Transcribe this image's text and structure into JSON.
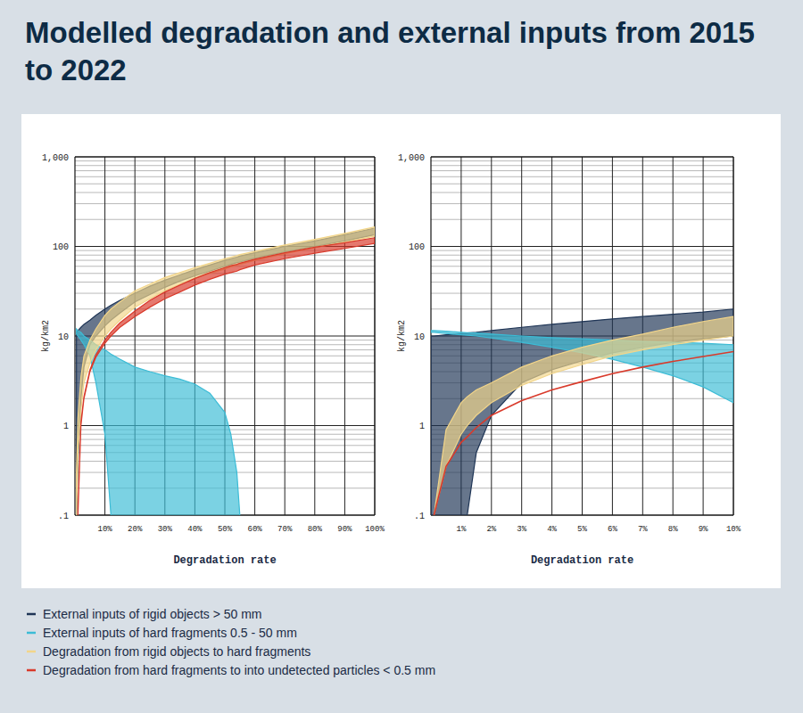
{
  "title": "Modelled degradation and external inputs from 2015 to 2022",
  "chart_data": [
    {
      "type": "area",
      "log": "y",
      "grid": true,
      "legend": "bottom",
      "xlabel": "Degradation rate",
      "ylabel": "kg/km2",
      "x": [
        0.5,
        1,
        2,
        3,
        5,
        7,
        10,
        12,
        15,
        20,
        25,
        30,
        35,
        40,
        45,
        50,
        52,
        54,
        55,
        60,
        70,
        80,
        90,
        100
      ],
      "xlim": [
        0,
        100
      ],
      "xticks": [
        {
          "value": 10,
          "label": "10%"
        },
        {
          "value": 20,
          "label": "20%"
        },
        {
          "value": 30,
          "label": "30%"
        },
        {
          "value": 40,
          "label": "40%"
        },
        {
          "value": 50,
          "label": "50%"
        },
        {
          "value": 60,
          "label": "60%"
        },
        {
          "value": 70,
          "label": "70%"
        },
        {
          "value": 80,
          "label": "80%"
        },
        {
          "value": 90,
          "label": "90%"
        },
        {
          "value": 100,
          "label": "100%"
        }
      ],
      "ylim": [
        0.1,
        1000
      ],
      "yticks": [
        {
          "value": 0.1,
          "label": ".1"
        },
        1,
        10,
        100,
        {
          "value": 1000,
          "label": "1,000"
        }
      ],
      "series": [
        {
          "name": "External inputs of rigid objects > 50 mm",
          "color": "#1f3556",
          "high": [
            11,
            11.5,
            12.5,
            13.5,
            15,
            17,
            20,
            22,
            25,
            30,
            36,
            42,
            48,
            55,
            62,
            70,
            73,
            76,
            78,
            85,
            100,
            115,
            135,
            160
          ],
          "low": [
            0.1,
            0.4,
            2,
            4.5,
            8,
            10,
            13,
            15,
            18,
            24,
            29,
            35,
            41,
            47,
            53,
            60,
            63,
            66,
            67,
            74,
            87,
            100,
            115,
            135
          ]
        },
        {
          "name": "External inputs of hard fragments 0.5 - 50 mm",
          "color": "#3cbcd6",
          "high": [
            12,
            11.5,
            11,
            10,
            9,
            8,
            7,
            6.3,
            5.5,
            4.5,
            4,
            3.6,
            3.3,
            2.9,
            2.3,
            1.4,
            0.8,
            0.3,
            0.1,
            null,
            null,
            null,
            null,
            null
          ],
          "low": [
            10.5,
            10,
            9,
            8,
            6,
            3,
            0.8,
            0.1,
            0.01,
            0.01,
            0.01,
            0.01,
            0.01,
            0.01,
            0.01,
            0.01,
            0.01,
            0.01,
            0.01,
            null,
            null,
            null,
            null,
            null
          ]
        },
        {
          "name": "Degradation from rigid objects to hard fragments",
          "color": "#f2d58a",
          "high": [
            0.3,
            1.2,
            3.5,
            6,
            9,
            12,
            17,
            20,
            24,
            32,
            38,
            45,
            51,
            58,
            65,
            73,
            76,
            79,
            81,
            88,
            104,
            120,
            140,
            165
          ],
          "low": [
            0.1,
            0.5,
            1.5,
            3,
            5,
            7,
            10,
            12,
            15,
            21,
            26,
            32,
            38,
            44,
            50,
            56,
            59,
            62,
            63,
            70,
            83,
            97,
            112,
            130
          ]
        },
        {
          "name": "Degradation from hard fragments to into undetected particles < 0.5 mm",
          "color": "#d93a2b",
          "high": [
            null,
            0.12,
            1.1,
            2.1,
            4.2,
            6.2,
            9,
            11,
            14,
            19,
            25,
            31,
            37,
            44,
            51,
            58,
            61,
            63,
            65,
            72,
            85,
            98,
            110,
            125
          ],
          "low": [
            null,
            0.1,
            1,
            2,
            4,
            5.8,
            8.3,
            10,
            12.5,
            16.5,
            21,
            26,
            31,
            37,
            43,
            49,
            51,
            53,
            55,
            62,
            73,
            84,
            95,
            108
          ]
        }
      ]
    },
    {
      "type": "area",
      "log": "y",
      "grid": true,
      "xlabel": "Degradation rate",
      "ylabel": "kg/km2",
      "x": [
        0,
        0.1,
        0.5,
        1,
        1.2,
        1.5,
        2,
        3,
        4,
        5,
        6,
        7,
        8,
        9,
        10
      ],
      "xlim": [
        0,
        10
      ],
      "xticks": [
        {
          "value": 1,
          "label": "1%"
        },
        {
          "value": 2,
          "label": "2%"
        },
        {
          "value": 3,
          "label": "3%"
        },
        {
          "value": 4,
          "label": "4%"
        },
        {
          "value": 5,
          "label": "5%"
        },
        {
          "value": 6,
          "label": "6%"
        },
        {
          "value": 7,
          "label": "7%"
        },
        {
          "value": 8,
          "label": "8%"
        },
        {
          "value": 9,
          "label": "9%"
        },
        {
          "value": 10,
          "label": "10%"
        }
      ],
      "ylim": [
        0.1,
        1000
      ],
      "yticks": [
        {
          "value": 0.1,
          "label": ".1"
        },
        1,
        10,
        100,
        {
          "value": 1000,
          "label": "1,000"
        }
      ],
      "series": [
        {
          "color": "#1f3556",
          "high": [
            10,
            10,
            10.3,
            10.6,
            10.8,
            11,
            11.5,
            12.5,
            13.5,
            14.5,
            15.5,
            16.5,
            17.5,
            18.5,
            20
          ],
          "low": [
            0.01,
            0.01,
            0.01,
            0.01,
            0.1,
            0.5,
            1.3,
            3,
            4.2,
            5.3,
            6.5,
            7.5,
            8.5,
            9.3,
            10
          ]
        },
        {
          "color": "#3cbcd6",
          "high": [
            11.5,
            11.5,
            11.3,
            11,
            10.9,
            10.8,
            10.5,
            10,
            9.6,
            9.3,
            9,
            8.7,
            8.5,
            8.3,
            8
          ],
          "low": [
            11,
            11,
            10.7,
            10.3,
            10.2,
            10,
            9.5,
            8.5,
            7.5,
            6.5,
            5.5,
            4.5,
            3.6,
            2.7,
            1.8
          ]
        },
        {
          "color": "#f2d58a",
          "high": [
            null,
            0.1,
            0.9,
            1.8,
            2.1,
            2.5,
            3,
            4.5,
            6,
            7.5,
            9,
            10.5,
            12.5,
            14.5,
            16.5
          ],
          "low": [
            null,
            0.1,
            0.35,
            0.8,
            1,
            1.3,
            1.8,
            2.8,
            3.8,
            4.8,
            6,
            7,
            8,
            9,
            10
          ]
        },
        {
          "color": "#d93a2b",
          "type": "line",
          "values": [
            null,
            0.1,
            0.35,
            0.65,
            0.75,
            0.95,
            1.3,
            1.9,
            2.5,
            3.1,
            3.8,
            4.5,
            5.2,
            5.9,
            6.7
          ]
        }
      ]
    }
  ]
}
